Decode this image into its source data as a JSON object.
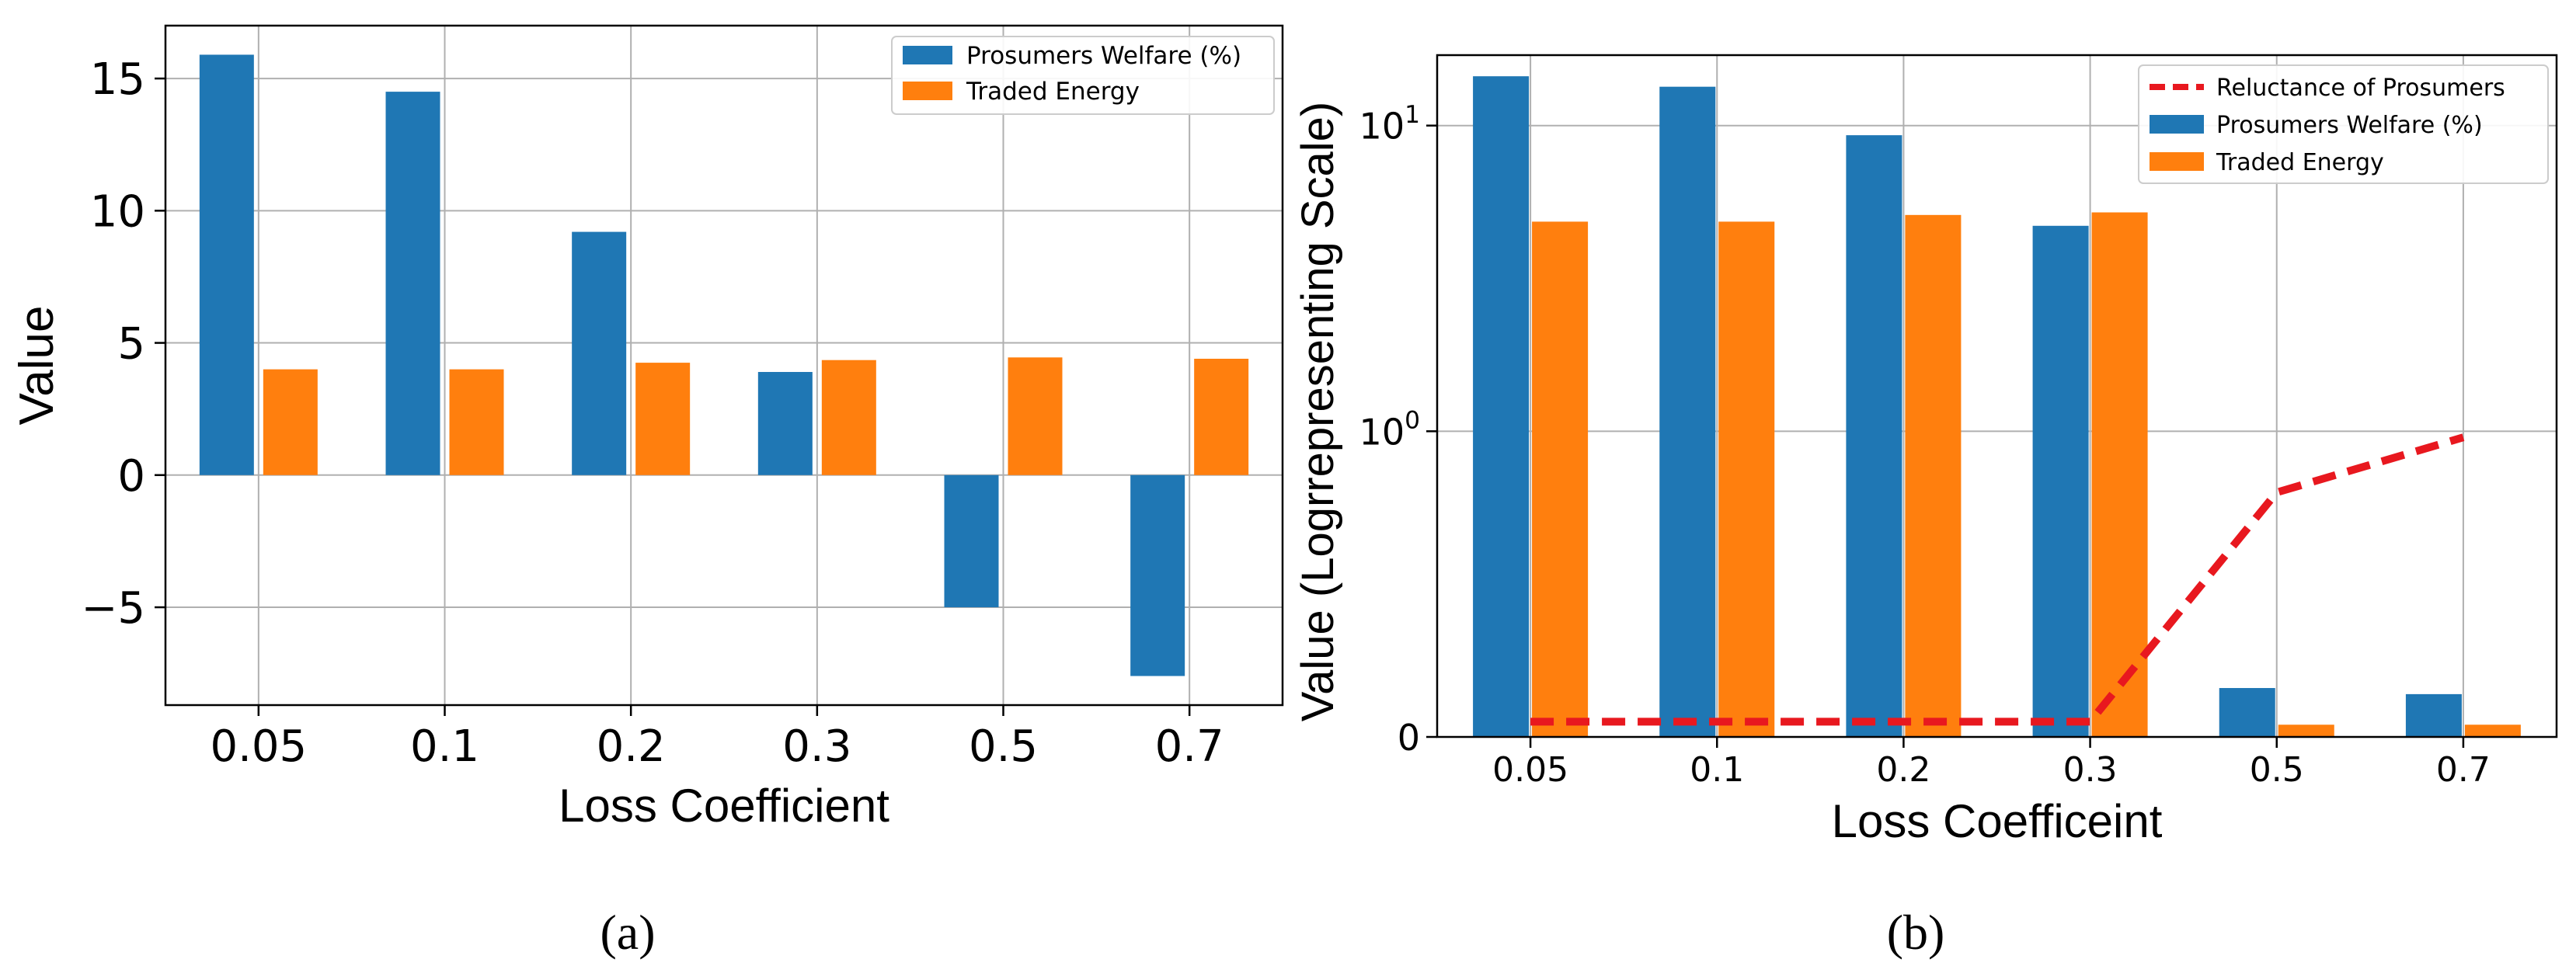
{
  "colors": {
    "welfare": "#1f77b4",
    "traded": "#ff7f0e",
    "reluctance": "#e8181f",
    "grid": "#b0b0b0",
    "axis": "#000000"
  },
  "chart_data": [
    {
      "type": "bar",
      "panel_label": "(a)",
      "categories": [
        "0.05",
        "0.1",
        "0.2",
        "0.3",
        "0.5",
        "0.7"
      ],
      "series": [
        {
          "name": "Prosumers Welfare (%)",
          "values": [
            15.9,
            14.5,
            9.2,
            3.9,
            -5.0,
            -7.6
          ]
        },
        {
          "name": "Traded Energy",
          "values": [
            4.0,
            4.0,
            4.25,
            4.35,
            4.45,
            4.4
          ]
        }
      ],
      "xlabel": "Loss Coefficient",
      "ylabel": "Value",
      "ylim": [
        -8.7,
        17.0
      ],
      "yticks": [
        -5,
        0,
        5,
        10,
        15
      ],
      "ytick_labels": [
        "−5",
        "0",
        "5",
        "10",
        "15"
      ],
      "grid": true,
      "legend_position": "top-right"
    },
    {
      "type": "bar",
      "panel_label": "(b)",
      "categories": [
        "0.05",
        "0.1",
        "0.2",
        "0.3",
        "0.5",
        "0.7"
      ],
      "series": [
        {
          "name": "Reluctance of Prosumers",
          "type": "line",
          "style": "dashed",
          "values": [
            0.05,
            0.05,
            0.05,
            0.05,
            0.8,
            0.98
          ]
        },
        {
          "name": "Prosumers Welfare (%)",
          "values": [
            14.5,
            13.4,
            9.3,
            4.7,
            0.16,
            0.14
          ]
        },
        {
          "name": "Traded Energy",
          "values": [
            4.85,
            4.85,
            5.1,
            5.2,
            0.04,
            0.04
          ]
        }
      ],
      "xlabel": "Loss Coefficeint",
      "ylabel": "Value (Logrrepresenting Scale)",
      "yscale": "symlog",
      "ylim": [
        0,
        17
      ],
      "yticks": [
        0,
        1,
        10
      ],
      "ytick_labels": [
        "0",
        "10⁰",
        "10¹"
      ],
      "grid": true,
      "legend_position": "top-right"
    }
  ]
}
